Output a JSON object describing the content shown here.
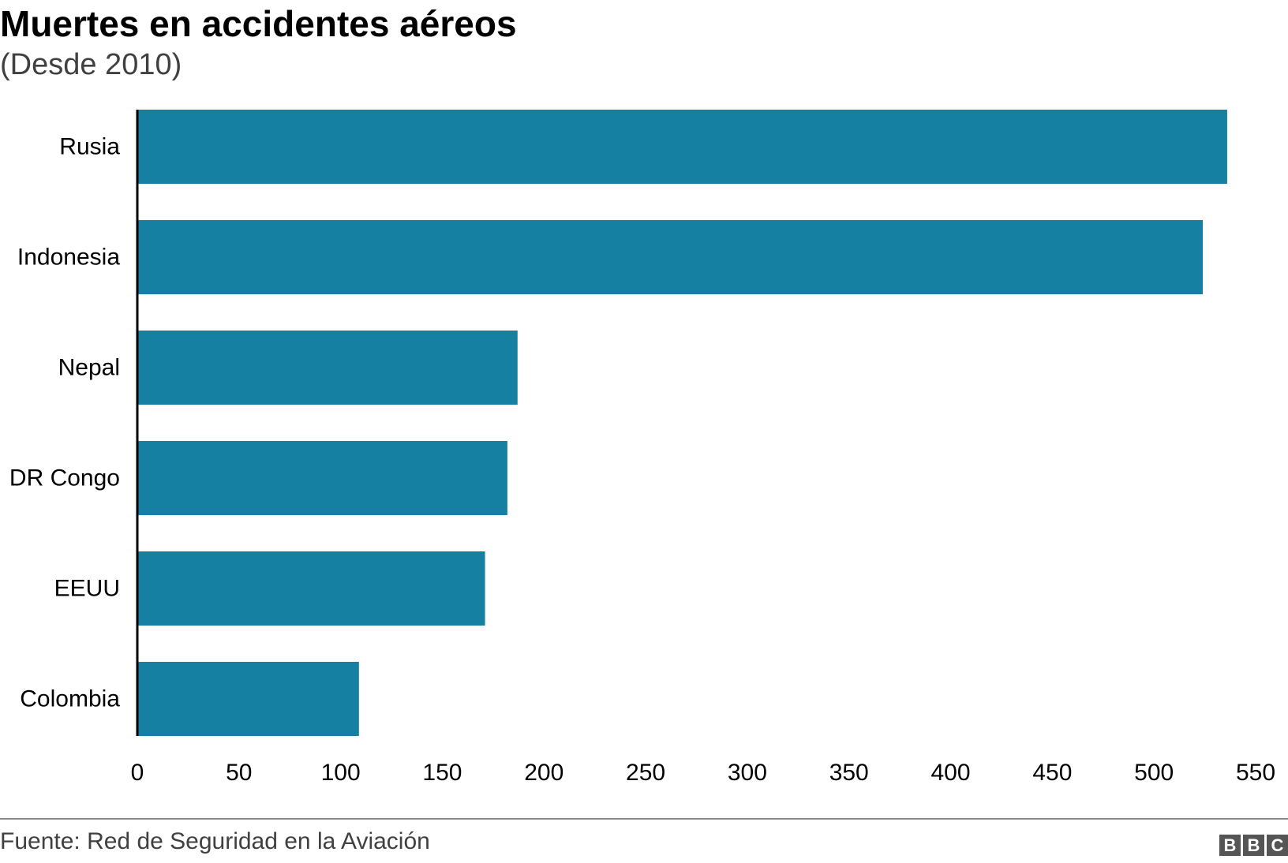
{
  "title": "Muertes en accidentes aéreos",
  "subtitle": "(Desde 2010)",
  "source": "Fuente: Red de Seguridad en la Aviación",
  "logo": {
    "letters": [
      "B",
      "B",
      "C"
    ]
  },
  "colors": {
    "bar": "#1580a1",
    "axis": "#000000",
    "text": "#000000",
    "muted": "#404040"
  },
  "chart_data": {
    "type": "bar",
    "orientation": "horizontal",
    "categories": [
      "Rusia",
      "Indonesia",
      "Nepal",
      "DR Congo",
      "EEUU",
      "Colombia"
    ],
    "values": [
      536,
      524,
      187,
      182,
      171,
      109
    ],
    "xlim": [
      0,
      550
    ],
    "xticks": [
      "0",
      "50",
      "100",
      "150",
      "200",
      "250",
      "300",
      "350",
      "400",
      "450",
      "500",
      "550"
    ],
    "grid": false,
    "legend": "none"
  }
}
